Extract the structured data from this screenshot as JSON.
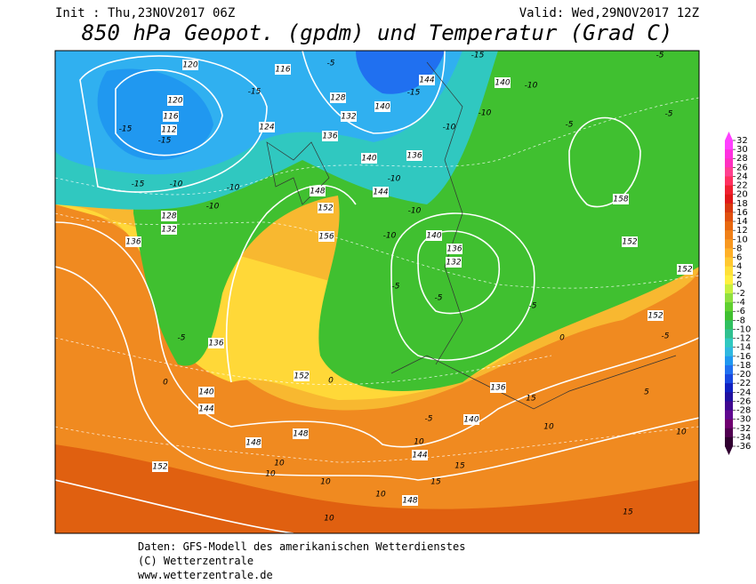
{
  "header": {
    "init": "Init : Thu,23NOV2017 06Z",
    "valid": "Valid: Wed,29NOV2017 12Z",
    "title": "850 hPa Geopot. (gpdm) und Temperatur (Grad C)"
  },
  "legend": {
    "ticks": [
      32,
      30,
      28,
      26,
      24,
      22,
      20,
      18,
      16,
      14,
      12,
      10,
      8,
      6,
      4,
      2,
      0,
      -2,
      -4,
      -6,
      -8,
      -10,
      -12,
      -14,
      -16,
      -18,
      -20,
      -22,
      -24,
      -26,
      -28,
      -30,
      -32,
      -34,
      -36
    ],
    "colors": [
      "#ff40ff",
      "#ff30e0",
      "#ff30c0",
      "#ff4090",
      "#ff3060",
      "#f02030",
      "#e01818",
      "#d83810",
      "#e05010",
      "#e86810",
      "#f08018",
      "#f89820",
      "#ffb028",
      "#ffc830",
      "#ffe038",
      "#fff040",
      "#c8f040",
      "#90e040",
      "#60d030",
      "#40c030",
      "#30c060",
      "#30c090",
      "#30c8c0",
      "#30b8e0",
      "#2098f0",
      "#2070f0",
      "#1848e0",
      "#1020c0",
      "#2010a0",
      "#400890",
      "#600890",
      "#700070",
      "#500050",
      "#300030"
    ]
  },
  "map": {
    "labels": [
      "120",
      "116",
      "120",
      "116",
      "112",
      "-15",
      "-15",
      "-15",
      "124",
      "-10",
      "-15",
      "-10",
      "-10",
      "128",
      "132",
      "136",
      "-5",
      "128",
      "132",
      "140",
      "-15",
      "144",
      "136",
      "140",
      "-10",
      "144",
      "136",
      "-10",
      "-10",
      "140",
      "-10",
      "-5",
      "-5",
      "-5",
      "-15",
      "158",
      "152",
      "152",
      "152",
      "148",
      "152",
      "156",
      "-10",
      "-10",
      "140",
      "136",
      "132",
      "-5",
      "-5",
      "-5",
      "136",
      "0",
      "140",
      "144",
      "152",
      "0",
      "148",
      "148",
      "152",
      "10",
      "10",
      "140",
      "136",
      "-5",
      "5",
      "10",
      "10",
      "144",
      "10",
      "15",
      "15",
      "10",
      "148",
      "10",
      "10",
      "15",
      "15",
      "0",
      "-5",
      "-5"
    ]
  },
  "footer": {
    "lines": [
      "Daten: GFS-Modell des amerikanischen Wetterdienstes",
      "(C) Wetterzentrale",
      "www.wetterzentrale.de"
    ]
  }
}
